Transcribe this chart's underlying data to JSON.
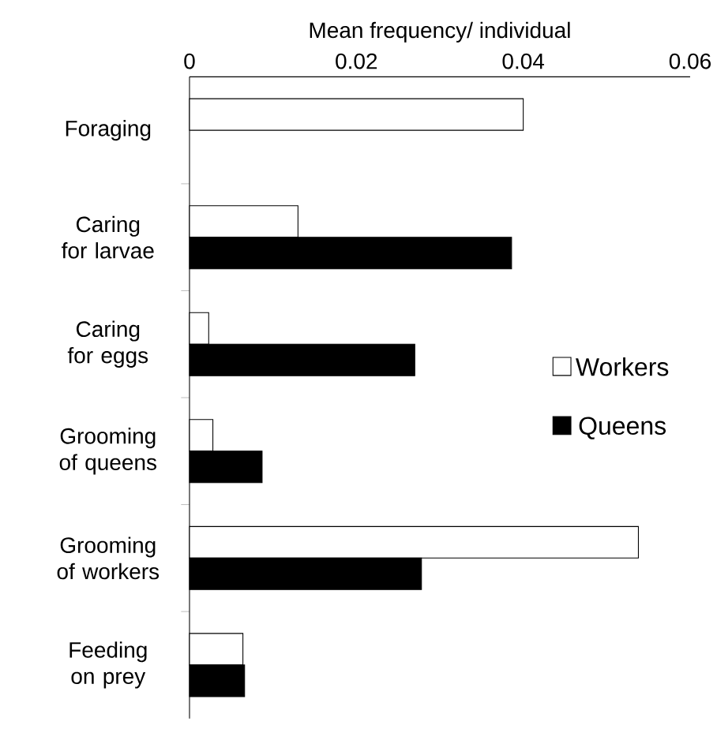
{
  "chart_data": {
    "type": "bar",
    "orientation": "horizontal",
    "xlabel": "Mean frequency/ individual",
    "categories": [
      "Foraging",
      "Caring for larvae",
      "Caring for eggs",
      "Grooming of queens",
      "Grooming of workers",
      "Feeding on prey"
    ],
    "series": [
      {
        "name": "Workers",
        "color": "#ffffff",
        "values": [
          0.04,
          0.013,
          0.0023,
          0.0028,
          0.0538,
          0.0064
        ]
      },
      {
        "name": "Queens",
        "color": "#000000",
        "values": [
          null,
          0.0386,
          0.027,
          0.0087,
          0.0278,
          0.0066
        ]
      }
    ],
    "xlim": [
      0,
      0.06
    ],
    "xticks": [
      0,
      0.02,
      0.04,
      0.06
    ],
    "legend": "right",
    "grid": false
  }
}
